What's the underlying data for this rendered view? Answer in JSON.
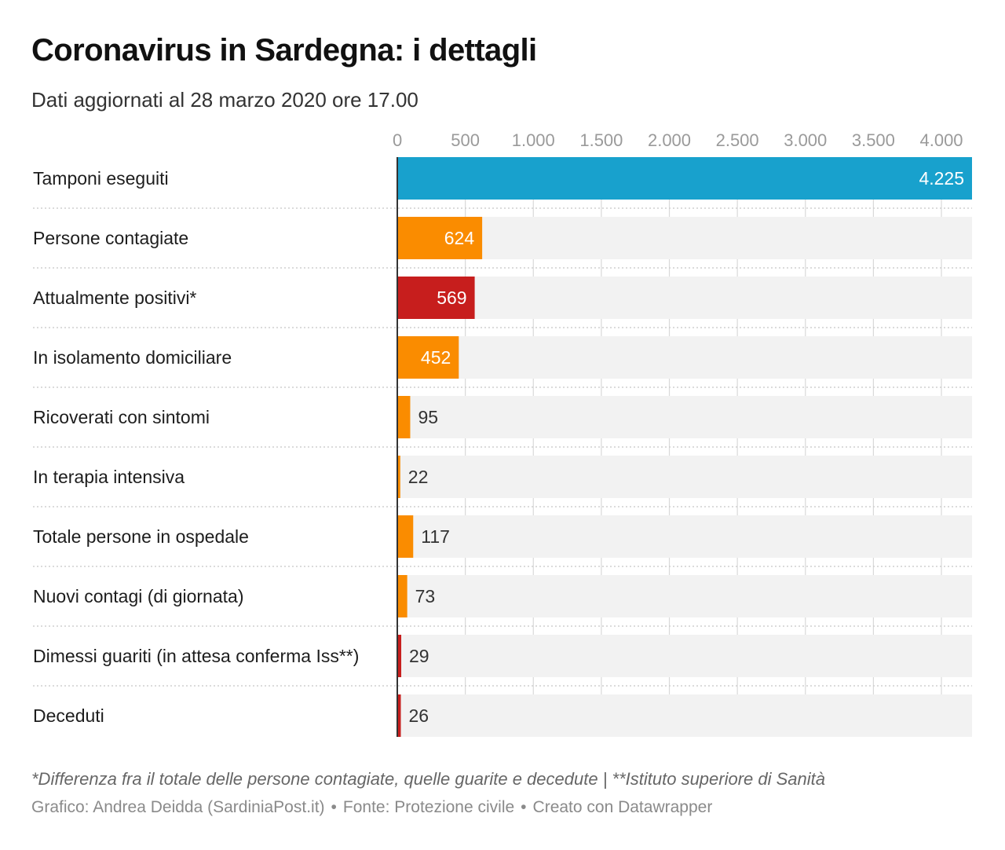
{
  "header": {
    "title": "Coronavirus in Sardegna: i dettagli",
    "subtitle": "Dati aggiornati al 28 marzo 2020 ore 17.00"
  },
  "chart_data": {
    "type": "bar",
    "orientation": "horizontal",
    "title": "Coronavirus in Sardegna: i dettagli",
    "subtitle": "Dati aggiornati al 28 marzo 2020 ore 17.00",
    "xlim": [
      0,
      4225
    ],
    "ticks": [
      {
        "value": 0,
        "label": "0"
      },
      {
        "value": 500,
        "label": "500"
      },
      {
        "value": 1000,
        "label": "1.000"
      },
      {
        "value": 1500,
        "label": "1.500"
      },
      {
        "value": 2000,
        "label": "2.000"
      },
      {
        "value": 2500,
        "label": "2.500"
      },
      {
        "value": 3000,
        "label": "3.000"
      },
      {
        "value": 3500,
        "label": "3.500"
      },
      {
        "value": 4000,
        "label": "4.000"
      }
    ],
    "grid": true,
    "categories": [
      "Tamponi eseguiti",
      "Persone contagiate",
      "Attualmente positivi*",
      "In isolamento domiciliare",
      "Ricoverati con sintomi",
      "In terapia intensiva",
      "Totale persone in ospedale",
      "Nuovi contagi (di giornata)",
      "Dimessi guariti (in attesa conferma Iss**)",
      "Deceduti"
    ],
    "values": [
      4225,
      624,
      569,
      452,
      95,
      22,
      117,
      73,
      29,
      26
    ],
    "value_labels": [
      "4.225",
      "624",
      "569",
      "452",
      "95",
      "22",
      "117",
      "73",
      "29",
      "26"
    ],
    "colors": [
      "#18a1cd",
      "#fa8c00",
      "#c71e1d",
      "#fa8c00",
      "#fa8c00",
      "#fa8c00",
      "#fa8c00",
      "#fa8c00",
      "#c71e1d",
      "#c71e1d"
    ],
    "background_bar_color": "#f2f2f2",
    "grid_color": "#d9d9d9",
    "baseline_color": "#333333"
  },
  "footer": {
    "notes": "*Differenza fra il totale delle persone contagiate, quelle guarite e decedute | **Istituto superiore di Sanità",
    "credit_chart": "Grafico: Andrea Deidda (SardiniaPost.it)",
    "credit_source": "Fonte: Protezione civile",
    "credit_tool": "Creato con Datawrapper",
    "separator": "•"
  }
}
